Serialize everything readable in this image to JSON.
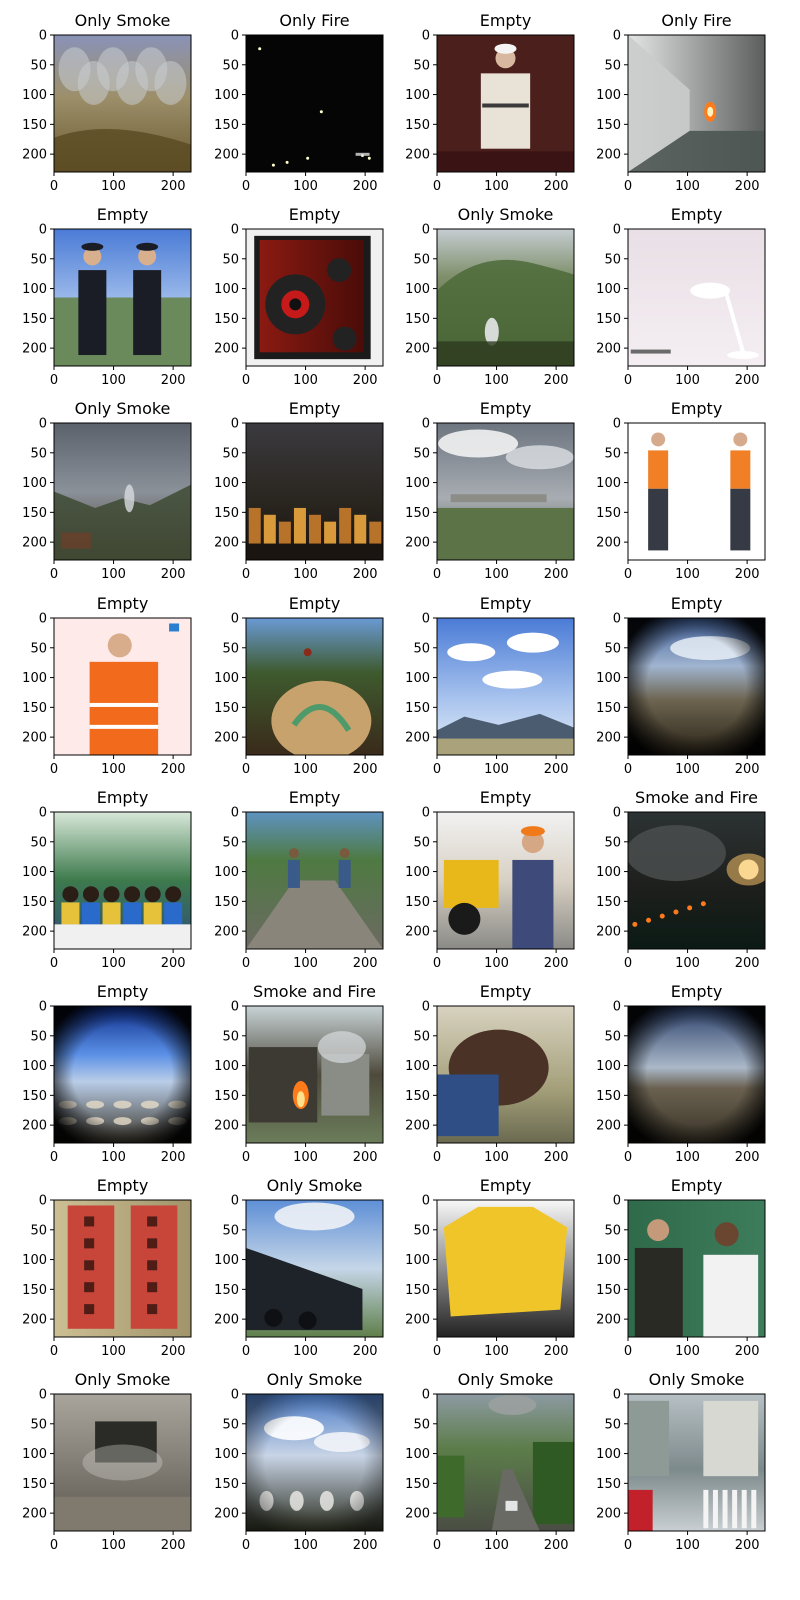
{
  "figure": {
    "panels": [
      {
        "title": "Only Smoke",
        "scene": "smoky-hillside-village"
      },
      {
        "title": "Only Fire",
        "scene": "night-dark-lights"
      },
      {
        "title": "Empty",
        "scene": "person-white-robe"
      },
      {
        "title": "Only Fire",
        "scene": "corridor-small-flame"
      },
      {
        "title": "Empty",
        "scene": "two-uniformed-officers"
      },
      {
        "title": "Empty",
        "scene": "red-speaker-box"
      },
      {
        "title": "Only Smoke",
        "scene": "forest-hill-smoke"
      },
      {
        "title": "Empty",
        "scene": "desk-lamp-white"
      },
      {
        "title": "Only Smoke",
        "scene": "valley-overcast-smoke"
      },
      {
        "title": "Empty",
        "scene": "city-dusk-buildings"
      },
      {
        "title": "Empty",
        "scene": "cloudy-landscape"
      },
      {
        "title": "Empty",
        "scene": "two-men-orange-vests"
      },
      {
        "title": "Empty",
        "scene": "man-orange-jacket"
      },
      {
        "title": "Empty",
        "scene": "rider-painted-rock"
      },
      {
        "title": "Empty",
        "scene": "blue-sky-city"
      },
      {
        "title": "Empty",
        "scene": "fisheye-hill-view"
      },
      {
        "title": "Empty",
        "scene": "classroom-children"
      },
      {
        "title": "Empty",
        "scene": "road-workers"
      },
      {
        "title": "Empty",
        "scene": "man-excavator"
      },
      {
        "title": "Smoke and Fire",
        "scene": "wildfire-sunset"
      },
      {
        "title": "Empty",
        "scene": "fisheye-aerial-blue"
      },
      {
        "title": "Smoke and Fire",
        "scene": "burning-shack"
      },
      {
        "title": "Empty",
        "scene": "woman-windblown-hair"
      },
      {
        "title": "Empty",
        "scene": "fisheye-plain-dusk"
      },
      {
        "title": "Empty",
        "scene": "red-banner-calligraphy"
      },
      {
        "title": "Only Smoke",
        "scene": "steam-locomotive"
      },
      {
        "title": "Empty",
        "scene": "yellow-plastic-bag"
      },
      {
        "title": "Empty",
        "scene": "two-men-chalkboard"
      },
      {
        "title": "Only Smoke",
        "scene": "room-interior-smoke"
      },
      {
        "title": "Only Smoke",
        "scene": "fisheye-mountain-clouds"
      },
      {
        "title": "Only Smoke",
        "scene": "green-hills-smoke-road"
      },
      {
        "title": "Only Smoke",
        "scene": "street-crossing-smoke"
      }
    ]
  },
  "chart_data": {
    "type": "image-grid",
    "rows": 8,
    "cols": 4,
    "xlim": [
      0,
      230
    ],
    "ylim": [
      230,
      0
    ],
    "xticks": [
      "0",
      "100",
      "200"
    ],
    "yticks": [
      "0",
      "50",
      "100",
      "150",
      "200"
    ],
    "xtick_values": [
      0,
      100,
      200
    ],
    "ytick_values": [
      0,
      50,
      100,
      150,
      200
    ],
    "grid": false,
    "categories": [
      "Only Smoke",
      "Only Fire",
      "Empty",
      "Smoke and Fire"
    ]
  },
  "colors": {
    "sky_blue": "#5f8fd4",
    "sky_gray": "#9aa3ad",
    "smoke": "#c9ccd0",
    "fire": "#ff7a1a",
    "night": "#050505",
    "vegetation": "#4f6b3a",
    "earth": "#7a6a4a"
  }
}
